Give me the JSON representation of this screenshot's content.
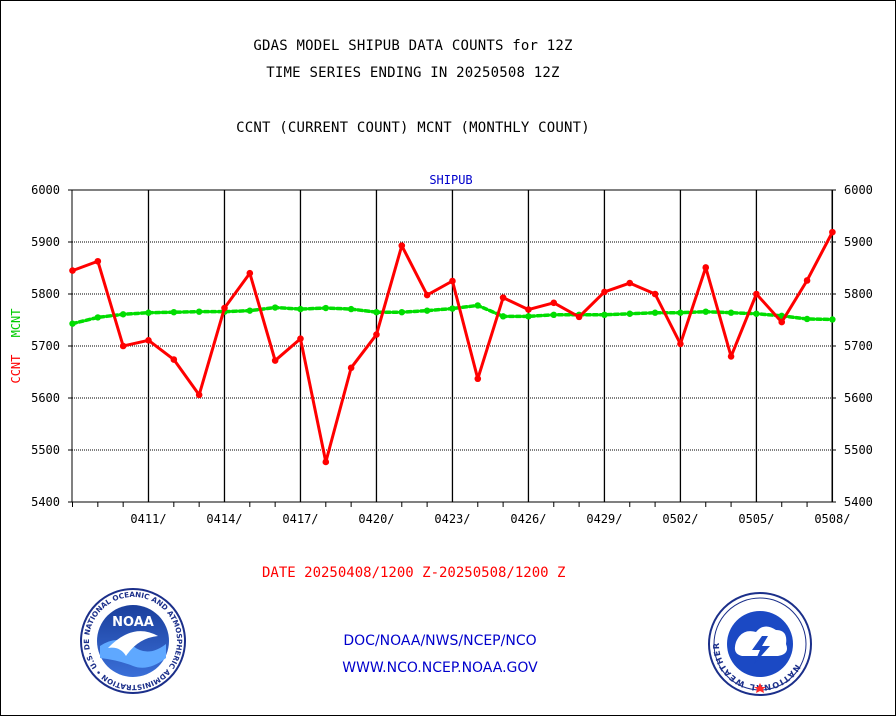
{
  "header": {
    "line1": "GDAS MODEL SHIPUB DATA COUNTS for 12Z",
    "line2": "TIME SERIES ENDING IN 20250508 12Z",
    "line3": "CCNT (CURRENT COUNT) MCNT (MONTHLY COUNT)"
  },
  "footer": {
    "date_range": "DATE 20250408/1200 Z-20250508/1200 Z",
    "org_path": "DOC/NOAA/NWS/NCEP/NCO",
    "website": "WWW.NCO.NCEP.NOAA.GOV"
  },
  "logos": {
    "noaa_label": "NOAA",
    "noaa_ring_text": "NATIONAL OCEANIC AND ATMOSPHERIC ADMINISTRATION • U.S. DEPARTMENT OF COMMERCE •",
    "nws_ring_text": "NATIONAL WEATHER SERVICE"
  },
  "colors": {
    "ccnt": "#ff0000",
    "mcnt": "#00dd00",
    "plot_title": "#0000cc",
    "ylabel_ccnt": "#ff0000",
    "ylabel_mcnt": "#00cc00"
  },
  "chart_data": {
    "type": "line",
    "title": "SHIPUB",
    "ylabel": "CCNT  MCNT",
    "ylabel_ccnt": "CCNT",
    "ylabel_mcnt": "MCNT",
    "ylim": [
      5400,
      6000
    ],
    "yticks": [
      5400,
      5500,
      5600,
      5700,
      5800,
      5900,
      6000
    ],
    "x_start": "2025-04-08",
    "x_end": "2025-05-08",
    "xticks": [
      "0411/",
      "0414/",
      "0417/",
      "0420/",
      "0423/",
      "0426/",
      "0429/",
      "0502/",
      "0505/",
      "0508/"
    ],
    "grid": true,
    "series": [
      {
        "name": "CCNT",
        "color": "#ff0000",
        "values": [
          5845,
          5863,
          5700,
          5711,
          5674,
          5606,
          5773,
          5840,
          5672,
          5714,
          5477,
          5658,
          5722,
          5893,
          5798,
          5825,
          5637,
          5793,
          5770,
          5783,
          5756,
          5804,
          5821,
          5800,
          5704,
          5851,
          5680,
          5800,
          5746,
          5826,
          5919
        ]
      },
      {
        "name": "MCNT",
        "color": "#00dd00",
        "values": [
          5743,
          5755,
          5761,
          5764,
          5765,
          5766,
          5766,
          5768,
          5774,
          5771,
          5773,
          5771,
          5765,
          5765,
          5768,
          5772,
          5778,
          5757,
          5757,
          5760,
          5760,
          5760,
          5762,
          5764,
          5764,
          5766,
          5764,
          5762,
          5758,
          5752,
          5751
        ]
      }
    ]
  }
}
